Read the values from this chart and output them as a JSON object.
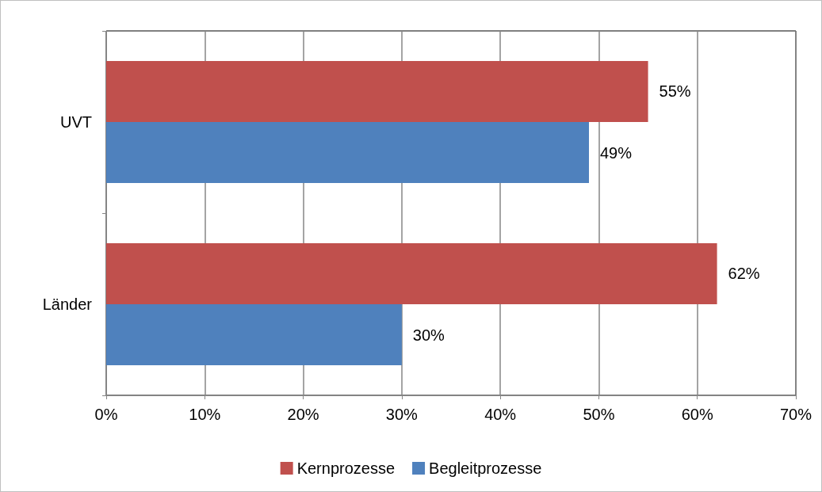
{
  "chart_data": {
    "type": "bar",
    "orientation": "horizontal",
    "categories": [
      "UVT",
      "Länder"
    ],
    "series": [
      {
        "name": "Kernprozesse",
        "color": "#c0504d",
        "values": [
          55,
          62
        ],
        "value_labels": [
          "55%",
          "62%"
        ]
      },
      {
        "name": "Begleitprozesse",
        "color": "#4f81bd",
        "values": [
          49,
          30
        ],
        "value_labels": [
          "49%",
          "30%"
        ]
      }
    ],
    "xlim": [
      0,
      70
    ],
    "xticks": [
      {
        "value": 0,
        "label": "0%"
      },
      {
        "value": 10,
        "label": "10%"
      },
      {
        "value": 20,
        "label": "20%"
      },
      {
        "value": 30,
        "label": "30%"
      },
      {
        "value": 40,
        "label": "40%"
      },
      {
        "value": 50,
        "label": "50%"
      },
      {
        "value": 60,
        "label": "60%"
      },
      {
        "value": 70,
        "label": "70%"
      }
    ],
    "grid": "x",
    "legend": "bottom"
  }
}
